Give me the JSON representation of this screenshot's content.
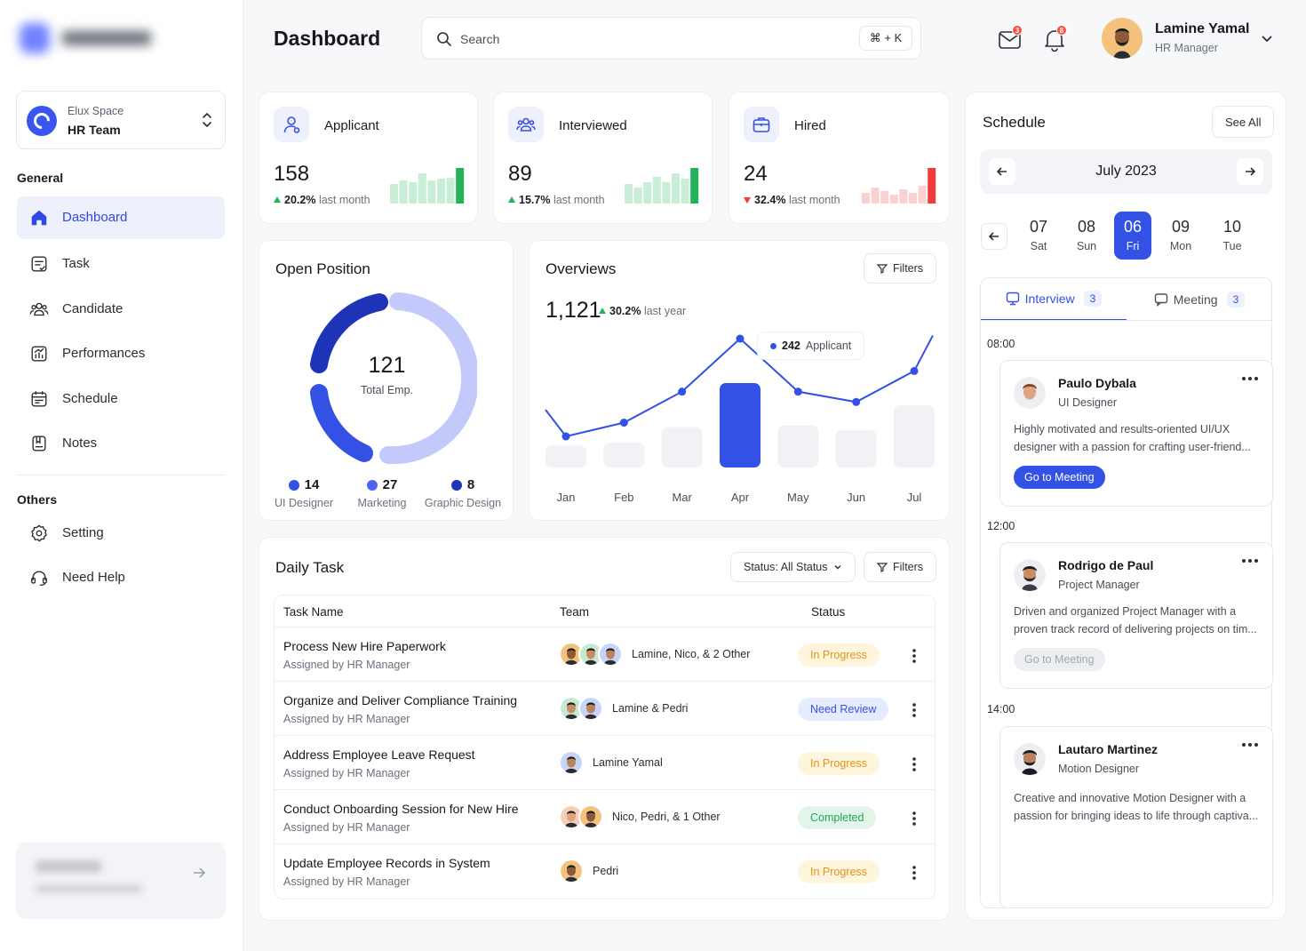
{
  "sidebar": {
    "workspace": {
      "name": "Elux Space",
      "team": "HR Team"
    },
    "general_label": "General",
    "general_items": [
      {
        "label": "Dashboard",
        "icon": "home-icon",
        "active": true
      },
      {
        "label": "Task",
        "icon": "task-icon"
      },
      {
        "label": "Candidate",
        "icon": "users-icon"
      },
      {
        "label": "Performances",
        "icon": "chart-icon"
      },
      {
        "label": "Schedule",
        "icon": "calendar-icon"
      },
      {
        "label": "Notes",
        "icon": "notes-icon"
      }
    ],
    "others_label": "Others",
    "other_items": [
      {
        "label": "Setting",
        "icon": "gear-icon"
      },
      {
        "label": "Need Help",
        "icon": "headset-icon"
      }
    ]
  },
  "header": {
    "title": "Dashboard",
    "search_placeholder": "Search",
    "search_shortcut": "⌘ + K",
    "mail_badge": "3",
    "bell_badge": "8",
    "user": {
      "name": "Lamine Yamal",
      "role": "HR Manager"
    }
  },
  "stats": [
    {
      "title": "Applicant",
      "value": "158",
      "delta": "20.2%",
      "delta_suffix": "last month",
      "trend": "up",
      "color": "#22b35a",
      "bars": [
        0.55,
        0.65,
        0.6,
        0.85,
        0.65,
        0.7,
        0.72,
        1.0
      ]
    },
    {
      "title": "Interviewed",
      "value": "89",
      "delta": "15.7%",
      "delta_suffix": "last month",
      "trend": "up",
      "color": "#22b35a",
      "bars": [
        0.55,
        0.45,
        0.6,
        0.75,
        0.6,
        0.85,
        0.7,
        1.0
      ]
    },
    {
      "title": "Hired",
      "value": "24",
      "delta": "32.4%",
      "delta_suffix": "last month",
      "trend": "down",
      "color": "#ef3b3b",
      "bars": [
        0.3,
        0.45,
        0.35,
        0.25,
        0.4,
        0.3,
        0.5,
        1.0
      ]
    }
  ],
  "open_position": {
    "title": "Open Position",
    "total": "121",
    "total_label": "Total Emp.",
    "segments": [
      {
        "value": 14,
        "label": "UI Designer",
        "color": "#2f48e6"
      },
      {
        "value": 27,
        "label": "Marketing",
        "color": "#4f63f2"
      },
      {
        "value": 8,
        "label": "Graphic Design",
        "color": "#1e34b8"
      }
    ]
  },
  "overviews": {
    "title": "Overviews",
    "filters_label": "Filters",
    "total": "1,121",
    "delta": "30.2%",
    "delta_suffix": "last year",
    "tooltip_value": "242",
    "tooltip_label": "Applicant"
  },
  "chart_data": {
    "type": "line",
    "categories": [
      "Jan",
      "Feb",
      "Mar",
      "Apr",
      "May",
      "Jun",
      "Jul"
    ],
    "series": [
      {
        "values": [
          100,
          120,
          165,
          242,
          165,
          150,
          195
        ]
      }
    ],
    "bars": [
      70,
      80,
      130,
      200,
      135,
      120,
      200
    ],
    "highlight": "Apr",
    "accent": "#3451e6"
  },
  "daily_task": {
    "title": "Daily Task",
    "status_filter": "Status: All Status",
    "filters_label": "Filters",
    "columns": [
      "Task Name",
      "Team",
      "Status"
    ],
    "rows": [
      {
        "name": "Process New Hire Paperwork",
        "by": "Assigned by HR Manager",
        "team": "Lamine, Nico, & 2 Other",
        "avatars": 3,
        "status": "In Progress",
        "kind": "progress"
      },
      {
        "name": "Organize and Deliver Compliance Training",
        "by": "Assigned by HR Manager",
        "team": "Lamine & Pedri",
        "avatars": 2,
        "status": "Need Review",
        "kind": "review"
      },
      {
        "name": "Address Employee Leave Request",
        "by": "Assigned by HR Manager",
        "team": "Lamine Yamal",
        "avatars": 1,
        "status": "In Progress",
        "kind": "progress"
      },
      {
        "name": "Conduct Onboarding Session for New Hire",
        "by": "Assigned by HR Manager",
        "team": "Nico, Pedri, & 1 Other",
        "avatars": 2,
        "status": "Completed",
        "kind": "completed"
      },
      {
        "name": "Update Employee Records in System",
        "by": "Assigned by HR Manager",
        "team": "Pedri",
        "avatars": 1,
        "status": "In Progress",
        "kind": "progress"
      }
    ]
  },
  "schedule": {
    "title": "Schedule",
    "see_all": "See All",
    "month": "July 2023",
    "days": [
      {
        "num": "07",
        "dow": "Sat"
      },
      {
        "num": "08",
        "dow": "Sun"
      },
      {
        "num": "06",
        "dow": "Fri",
        "selected": true
      },
      {
        "num": "09",
        "dow": "Mon"
      },
      {
        "num": "10",
        "dow": "Tue"
      }
    ],
    "tabs": [
      {
        "label": "Interview",
        "count": "3",
        "active": true
      },
      {
        "label": "Meeting",
        "count": "3"
      }
    ],
    "slots": [
      {
        "time": "08:00",
        "name": "Paulo Dybala",
        "role": "UI Designer",
        "desc": "Highly motivated and results-oriented UI/UX designer with a passion for crafting user-friend...",
        "button": "Go to Meeting",
        "active": true
      },
      {
        "time": "12:00",
        "name": "Rodrigo de Paul",
        "role": "Project Manager",
        "desc": "Driven and organized Project Manager with a proven track record of delivering projects on tim...",
        "button": "Go to Meeting",
        "active": false
      },
      {
        "time": "14:00",
        "name": "Lautaro Martinez",
        "role": "Motion Designer",
        "desc": "Creative and innovative Motion Designer with a passion for bringing ideas to life through captiva...",
        "button": "",
        "active": false
      }
    ]
  }
}
